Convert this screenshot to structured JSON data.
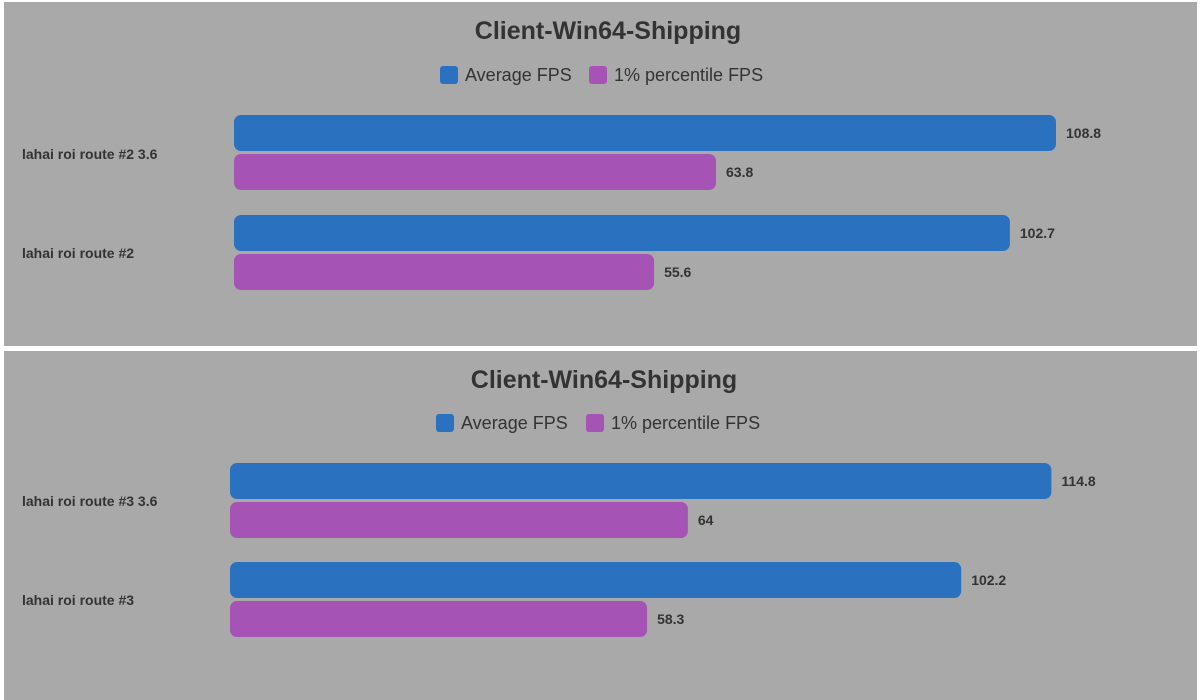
{
  "chart_data": [
    {
      "type": "bar",
      "orientation": "horizontal",
      "title": "Client-Win64-Shipping",
      "categories": [
        "lahai roi route #2 3.6",
        "lahai roi route #2"
      ],
      "series": [
        {
          "name": "Average FPS",
          "values": [
            108.8,
            102.7
          ],
          "color": "#2a72bf"
        },
        {
          "name": "1% percentile FPS",
          "values": [
            63.8,
            55.6
          ],
          "color": "#a653b6"
        }
      ],
      "legend_position": "top-center",
      "grid": false
    },
    {
      "type": "bar",
      "orientation": "horizontal",
      "title": "Client-Win64-Shipping",
      "categories": [
        "lahai roi route #3 3.6",
        "lahai roi route #3"
      ],
      "series": [
        {
          "name": "Average FPS",
          "values": [
            114.8,
            102.2
          ],
          "color": "#2a72bf"
        },
        {
          "name": "1% percentile FPS",
          "values": [
            64,
            58.3
          ],
          "color": "#a653b6"
        }
      ],
      "legend_position": "top-center",
      "grid": false
    }
  ],
  "colors": {
    "panel_background": "#a9a9a9",
    "text": "#333333"
  }
}
